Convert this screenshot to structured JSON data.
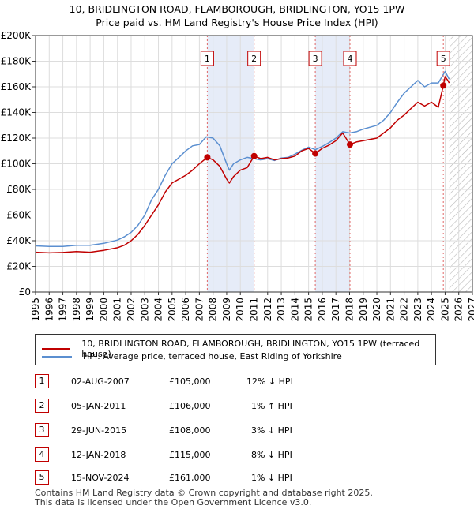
{
  "title": {
    "line1": "10, BRIDLINGTON ROAD, FLAMBOROUGH, BRIDLINGTON, YO15 1PW",
    "line2": "Price paid vs. HM Land Registry's House Price Index (HPI)"
  },
  "chart_data": {
    "type": "line",
    "ylim": [
      0,
      200000
    ],
    "xlim": [
      1995,
      2027
    ],
    "y_ticks": [
      {
        "value": 0,
        "label": "£0"
      },
      {
        "value": 20000,
        "label": "£20K"
      },
      {
        "value": 40000,
        "label": "£40K"
      },
      {
        "value": 60000,
        "label": "£60K"
      },
      {
        "value": 80000,
        "label": "£80K"
      },
      {
        "value": 100000,
        "label": "£100K"
      },
      {
        "value": 120000,
        "label": "£120K"
      },
      {
        "value": 140000,
        "label": "£140K"
      },
      {
        "value": 160000,
        "label": "£160K"
      },
      {
        "value": 180000,
        "label": "£180K"
      },
      {
        "value": 200000,
        "label": "£200K"
      }
    ],
    "x_ticks": [
      "1995",
      "1996",
      "1997",
      "1998",
      "1999",
      "2000",
      "2001",
      "2002",
      "2003",
      "2004",
      "2005",
      "2006",
      "2007",
      "2008",
      "2009",
      "2010",
      "2011",
      "2012",
      "2013",
      "2014",
      "2015",
      "2016",
      "2017",
      "2018",
      "2019",
      "2020",
      "2021",
      "2022",
      "2023",
      "2024",
      "2025",
      "2026",
      "2027"
    ],
    "grid": true,
    "shaded_ranges": [
      [
        2007.58,
        2011.01
      ],
      [
        2015.49,
        2018.03
      ]
    ],
    "hatch_from": 2025.3,
    "series": [
      {
        "name": "10, BRIDLINGTON ROAD, FLAMBOROUGH, BRIDLINGTON, YO15 1PW (terraced house)",
        "color": "#c00000",
        "x": [
          1995.0,
          1996.0,
          1997.0,
          1998.0,
          1999.0,
          2000.0,
          2001.0,
          2001.5,
          2002.0,
          2002.5,
          2003.0,
          2003.5,
          2004.0,
          2004.5,
          2005.0,
          2005.5,
          2006.0,
          2006.5,
          2007.0,
          2007.58,
          2008.0,
          2008.5,
          2009.0,
          2009.2,
          2009.5,
          2010.0,
          2010.5,
          2011.01,
          2011.5,
          2012.0,
          2012.5,
          2013.0,
          2013.5,
          2014.0,
          2014.5,
          2015.0,
          2015.49,
          2016.0,
          2016.5,
          2017.0,
          2017.5,
          2018.03,
          2018.5,
          2019.0,
          2019.5,
          2020.0,
          2020.5,
          2021.0,
          2021.5,
          2022.0,
          2022.5,
          2023.0,
          2023.5,
          2024.0,
          2024.5,
          2024.87,
          2025.0,
          2025.2,
          2025.3
        ],
        "y": [
          31000,
          30500,
          30800,
          31500,
          31000,
          32500,
          34500,
          36500,
          40000,
          45000,
          52000,
          60000,
          68000,
          78000,
          85000,
          88000,
          91000,
          95000,
          100000,
          105000,
          103000,
          98000,
          88000,
          85000,
          90000,
          95000,
          97000,
          106000,
          104000,
          105000,
          103000,
          104000,
          104500,
          106000,
          110000,
          112000,
          108000,
          112000,
          114500,
          118000,
          124000,
          115000,
          117000,
          118000,
          119000,
          120000,
          124000,
          128000,
          134000,
          138000,
          143000,
          148000,
          145000,
          148000,
          144000,
          161000,
          168000,
          165000,
          163000
        ]
      },
      {
        "name": "HPI: Average price, terraced house, East Riding of Yorkshire",
        "color": "#5b8fd0",
        "x": [
          1995.0,
          1996.0,
          1997.0,
          1998.0,
          1999.0,
          2000.0,
          2001.0,
          2001.5,
          2002.0,
          2002.5,
          2003.0,
          2003.5,
          2004.0,
          2004.5,
          2005.0,
          2005.5,
          2006.0,
          2006.5,
          2007.0,
          2007.5,
          2008.0,
          2008.5,
          2009.0,
          2009.2,
          2009.5,
          2010.0,
          2010.5,
          2011.0,
          2011.5,
          2012.0,
          2012.5,
          2013.0,
          2013.5,
          2014.0,
          2014.5,
          2015.0,
          2015.5,
          2016.0,
          2016.5,
          2017.0,
          2017.5,
          2018.0,
          2018.5,
          2019.0,
          2019.5,
          2020.0,
          2020.5,
          2021.0,
          2021.5,
          2022.0,
          2022.5,
          2023.0,
          2023.5,
          2024.0,
          2024.5,
          2025.0,
          2025.2,
          2025.3
        ],
        "y": [
          36000,
          35500,
          35500,
          36500,
          36500,
          38000,
          40500,
          43000,
          46500,
          52000,
          60000,
          72000,
          80000,
          91000,
          100000,
          105000,
          110000,
          114000,
          115000,
          121000,
          120000,
          114000,
          100000,
          95000,
          100000,
          103000,
          105000,
          104000,
          103000,
          104000,
          102500,
          104500,
          105000,
          107500,
          110500,
          113000,
          111000,
          113500,
          116500,
          120000,
          125000,
          124000,
          125000,
          127000,
          128500,
          130000,
          134000,
          140000,
          148000,
          155000,
          160000,
          165000,
          160000,
          163000,
          163000,
          172000,
          168000,
          166000
        ]
      }
    ],
    "transactions": [
      {
        "num": "1",
        "x": 2007.58,
        "y": 105000
      },
      {
        "num": "2",
        "x": 2011.01,
        "y": 106000
      },
      {
        "num": "3",
        "x": 2015.49,
        "y": 108000
      },
      {
        "num": "4",
        "x": 2018.03,
        "y": 115000
      },
      {
        "num": "5",
        "x": 2024.87,
        "y": 161000
      }
    ]
  },
  "legend": {
    "property_label": "10, BRIDLINGTON ROAD, FLAMBOROUGH, BRIDLINGTON, YO15 1PW (terraced house)",
    "hpi_label": "HPI: Average price, terraced house, East Riding of Yorkshire",
    "property_color": "#c00000",
    "hpi_color": "#5b8fd0"
  },
  "transactions_table": [
    {
      "num": "1",
      "date": "02-AUG-2007",
      "price": "£105,000",
      "hpi": "12% ↓ HPI"
    },
    {
      "num": "2",
      "date": "05-JAN-2011",
      "price": "£106,000",
      "hpi": "1% ↑ HPI"
    },
    {
      "num": "3",
      "date": "29-JUN-2015",
      "price": "£108,000",
      "hpi": "3% ↓ HPI"
    },
    {
      "num": "4",
      "date": "12-JAN-2018",
      "price": "£115,000",
      "hpi": "8% ↓ HPI"
    },
    {
      "num": "5",
      "date": "15-NOV-2024",
      "price": "£161,000",
      "hpi": "1% ↓ HPI"
    }
  ],
  "footer": {
    "line1": "Contains HM Land Registry data © Crown copyright and database right 2025.",
    "line2": "This data is licensed under the Open Government Licence v3.0."
  }
}
